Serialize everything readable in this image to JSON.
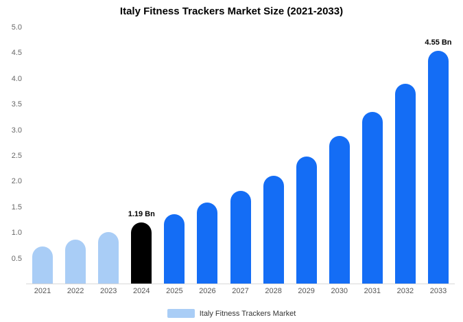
{
  "chart_data": {
    "type": "bar",
    "title": "Italy Fitness Trackers Market Size (2021-2033)",
    "categories": [
      "2021",
      "2022",
      "2023",
      "2024",
      "2025",
      "2026",
      "2027",
      "2028",
      "2029",
      "2030",
      "2031",
      "2032",
      "2033"
    ],
    "values": [
      0.72,
      0.86,
      1.0,
      1.19,
      1.36,
      1.58,
      1.81,
      2.1,
      2.48,
      2.88,
      3.35,
      3.9,
      4.55
    ],
    "bar_colors": [
      "#a9cdf6",
      "#a9cdf6",
      "#a9cdf6",
      "#000000",
      "#146df5",
      "#146df5",
      "#146df5",
      "#146df5",
      "#146df5",
      "#146df5",
      "#146df5",
      "#146df5",
      "#146df5"
    ],
    "annotations": [
      {
        "index": 3,
        "label": "1.19 Bn"
      },
      {
        "index": 12,
        "label": "4.55 Bn"
      }
    ],
    "xlabel": "",
    "ylabel": "",
    "ylim": [
      0,
      5
    ],
    "yticks": [
      0.5,
      1.0,
      1.5,
      2.0,
      2.5,
      3.0,
      3.5,
      4.0,
      4.5,
      5.0
    ],
    "grid": false,
    "legend": {
      "label": "Italy Fitness Trackers Market",
      "swatch_color": "#a9cdf6",
      "position": "bottom"
    }
  }
}
